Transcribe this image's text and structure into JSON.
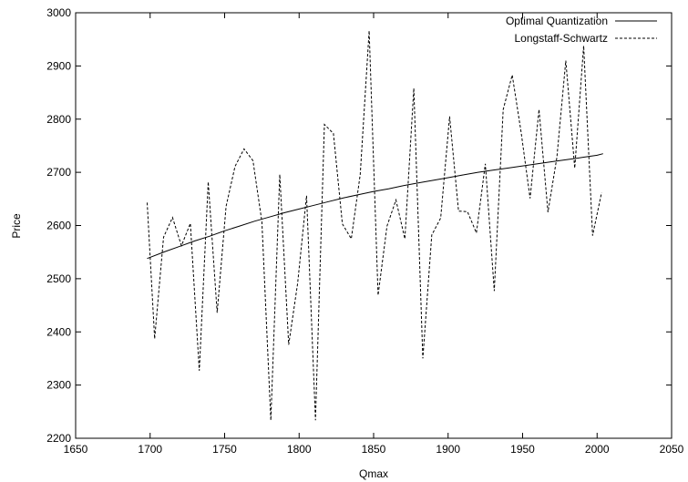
{
  "chart_data": {
    "type": "line",
    "xlabel": "Qmax",
    "ylabel": "Price",
    "xlim": [
      1650,
      2050
    ],
    "ylim": [
      2200,
      3000
    ],
    "xticks": [
      1650,
      1700,
      1750,
      1800,
      1850,
      1900,
      1950,
      2000,
      2050
    ],
    "yticks": [
      2200,
      2300,
      2400,
      2500,
      2600,
      2700,
      2800,
      2900,
      3000
    ],
    "grid": false,
    "legend_position": "top-right",
    "series": [
      {
        "name": "Optimal Quantization",
        "style": "solid",
        "color": "#000000",
        "x": [
          1698,
          1710,
          1720,
          1730,
          1740,
          1750,
          1760,
          1770,
          1780,
          1790,
          1800,
          1810,
          1820,
          1830,
          1840,
          1850,
          1860,
          1870,
          1880,
          1890,
          1900,
          1910,
          1920,
          1930,
          1940,
          1950,
          1960,
          1970,
          1980,
          1990,
          2000,
          2004
        ],
        "y": [
          2538,
          2551,
          2561,
          2571,
          2580,
          2590,
          2599,
          2608,
          2616,
          2624,
          2631,
          2638,
          2645,
          2652,
          2658,
          2664,
          2669,
          2675,
          2680,
          2685,
          2690,
          2695,
          2700,
          2704,
          2708,
          2712,
          2716,
          2720,
          2724,
          2728,
          2732,
          2735
        ]
      },
      {
        "name": "Longstaff-Schwartz",
        "style": "dashed",
        "color": "#000000",
        "x": [
          1698,
          1703,
          1709,
          1715,
          1721,
          1727,
          1733,
          1739,
          1745,
          1751,
          1757,
          1763,
          1769,
          1775,
          1781,
          1787,
          1793,
          1799,
          1805,
          1811,
          1817,
          1823,
          1829,
          1835,
          1841,
          1847,
          1853,
          1859,
          1865,
          1871,
          1877,
          1883,
          1889,
          1895,
          1901,
          1907,
          1913,
          1919,
          1925,
          1931,
          1937,
          1943,
          1949,
          1955,
          1961,
          1967,
          1973,
          1979,
          1985,
          1991,
          1997,
          2003
        ],
        "y": [
          2643,
          2387,
          2578,
          2615,
          2562,
          2604,
          2327,
          2682,
          2436,
          2636,
          2711,
          2744,
          2722,
          2607,
          2234,
          2696,
          2376,
          2491,
          2656,
          2234,
          2790,
          2773,
          2603,
          2575,
          2696,
          2966,
          2469,
          2599,
          2648,
          2575,
          2858,
          2350,
          2582,
          2614,
          2805,
          2627,
          2626,
          2586,
          2716,
          2477,
          2818,
          2883,
          2775,
          2651,
          2818,
          2625,
          2728,
          2910,
          2708,
          2938,
          2581,
          2662
        ]
      }
    ]
  }
}
